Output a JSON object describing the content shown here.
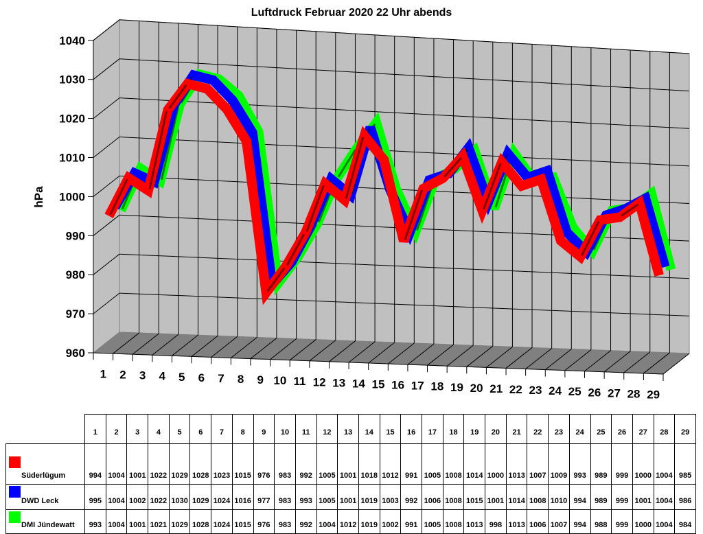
{
  "chart_data": {
    "type": "line",
    "style": "3d-ribbon",
    "title": "Luftdruck Februar 2020 22 Uhr abends",
    "xlabel": "",
    "ylabel": "hPa",
    "ylim": [
      960,
      1040
    ],
    "yticks": [
      960,
      970,
      980,
      990,
      1000,
      1010,
      1020,
      1030,
      1040
    ],
    "grid": true,
    "categories": [
      "1",
      "2",
      "3",
      "4",
      "5",
      "6",
      "7",
      "8",
      "9",
      "10",
      "11",
      "12",
      "13",
      "14",
      "15",
      "16",
      "17",
      "18",
      "19",
      "20",
      "21",
      "22",
      "23",
      "24",
      "25",
      "26",
      "27",
      "28",
      "29"
    ],
    "series": [
      {
        "name": "Süderlügum",
        "color": "#ff0000",
        "values": [
          994,
          1004,
          1001,
          1022,
          1029,
          1028,
          1023,
          1015,
          976,
          983,
          992,
          1005,
          1001,
          1018,
          1012,
          991,
          1005,
          1008,
          1014,
          1000,
          1013,
          1007,
          1009,
          993,
          989,
          999,
          1000,
          1004,
          985
        ]
      },
      {
        "name": "DWD Leck",
        "color": "#0000ff",
        "values": [
          995,
          1004,
          1002,
          1022,
          1030,
          1029,
          1024,
          1016,
          977,
          983,
          993,
          1005,
          1001,
          1019,
          1003,
          992,
          1006,
          1008,
          1015,
          1001,
          1014,
          1008,
          1010,
          994,
          989,
          999,
          1001,
          1004,
          986
        ]
      },
      {
        "name": "DMI Jündewatt",
        "color": "#00ff00",
        "values": [
          993,
          1004,
          1001,
          1021,
          1029,
          1028,
          1024,
          1015,
          976,
          983,
          992,
          1004,
          1012,
          1019,
          1002,
          991,
          1005,
          1008,
          1013,
          998,
          1013,
          1006,
          1007,
          994,
          988,
          999,
          1000,
          1004,
          984
        ]
      }
    ],
    "legend_position": "data-table-left"
  },
  "table": {
    "header": [
      "1",
      "2",
      "3",
      "4",
      "5",
      "6",
      "7",
      "8",
      "9",
      "10",
      "11",
      "12",
      "13",
      "14",
      "15",
      "16",
      "17",
      "18",
      "19",
      "20",
      "21",
      "22",
      "23",
      "24",
      "25",
      "26",
      "27",
      "28",
      "29"
    ]
  }
}
